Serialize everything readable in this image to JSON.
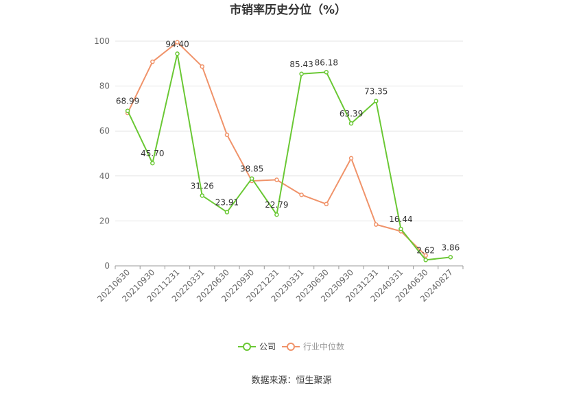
{
  "chart_data": {
    "type": "line",
    "title": "市销率历史分位（%）",
    "categories": [
      "20210630",
      "20210930",
      "20211231",
      "20220331",
      "20220630",
      "20220930",
      "20221231",
      "20230331",
      "20230630",
      "20230930",
      "20231231",
      "20240331",
      "20240630",
      "20240827"
    ],
    "ylim": [
      0,
      100
    ],
    "yticks": [
      0,
      20,
      40,
      60,
      80,
      100
    ],
    "grid": true,
    "legend_position": "bottom",
    "series": [
      {
        "name": "公司",
        "color": "#6ac834",
        "values": [
          68.99,
          45.7,
          94.4,
          31.26,
          23.91,
          38.85,
          22.79,
          85.43,
          86.18,
          63.39,
          73.35,
          16.44,
          2.62,
          3.86
        ],
        "labels": [
          "68.99",
          "45.70",
          "94.40",
          "31.26",
          "23.91",
          "38.85",
          "22.79",
          "85.43",
          "86.18",
          "63.39",
          "73.35",
          "16.44",
          "2.62",
          "3.86"
        ]
      },
      {
        "name": "行业中位数",
        "color": "#f0936a",
        "values": [
          68.0,
          90.8,
          99.5,
          88.7,
          58.3,
          37.8,
          38.3,
          31.6,
          27.5,
          47.9,
          18.4,
          15.4,
          4.6,
          null
        ]
      }
    ],
    "source": "数据来源：恒生聚源"
  }
}
